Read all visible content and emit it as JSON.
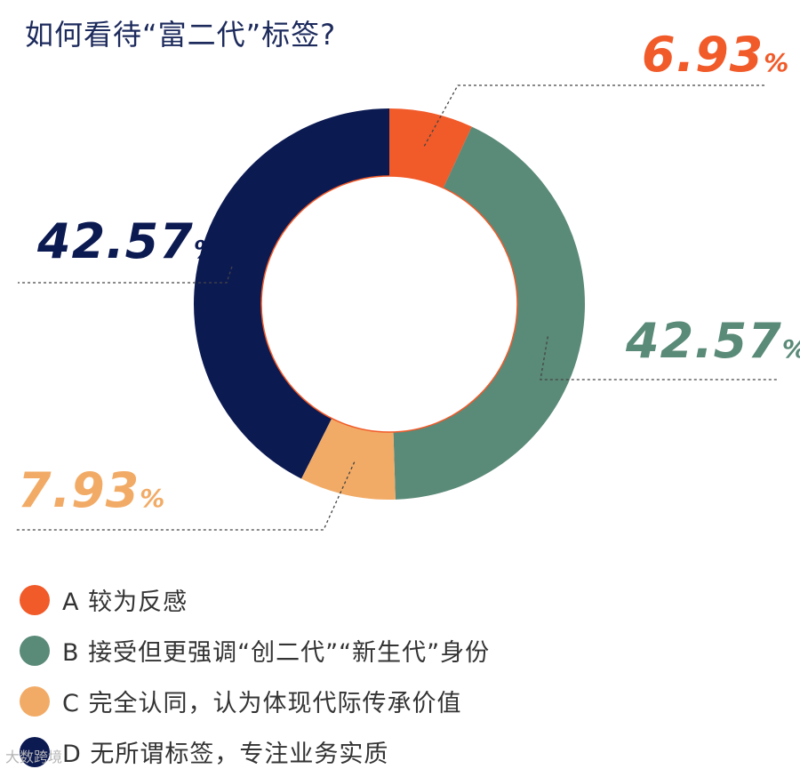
{
  "title": "如何看待“富二代”标签?",
  "chart_data": {
    "type": "pie",
    "donut": true,
    "slices": [
      {
        "key": "A",
        "label": "较为反感",
        "value": 6.93,
        "display": "6.93",
        "color": "#f15a29"
      },
      {
        "key": "B",
        "label": "接受但更强调“创二代”“新生代”身份",
        "value": 42.57,
        "display": "42.57",
        "color": "#5a8a78"
      },
      {
        "key": "C",
        "label": "完全认同，认为体现代际传承价值",
        "value": 7.93,
        "display": "7.93",
        "color": "#f2ab66"
      },
      {
        "key": "D",
        "label": "无所谓标签，专注业务实质",
        "value": 42.57,
        "display": "42.57",
        "color": "#0c1a52"
      }
    ],
    "unit": "%",
    "legend": "bottom-left"
  },
  "watermark": "大数跨境"
}
